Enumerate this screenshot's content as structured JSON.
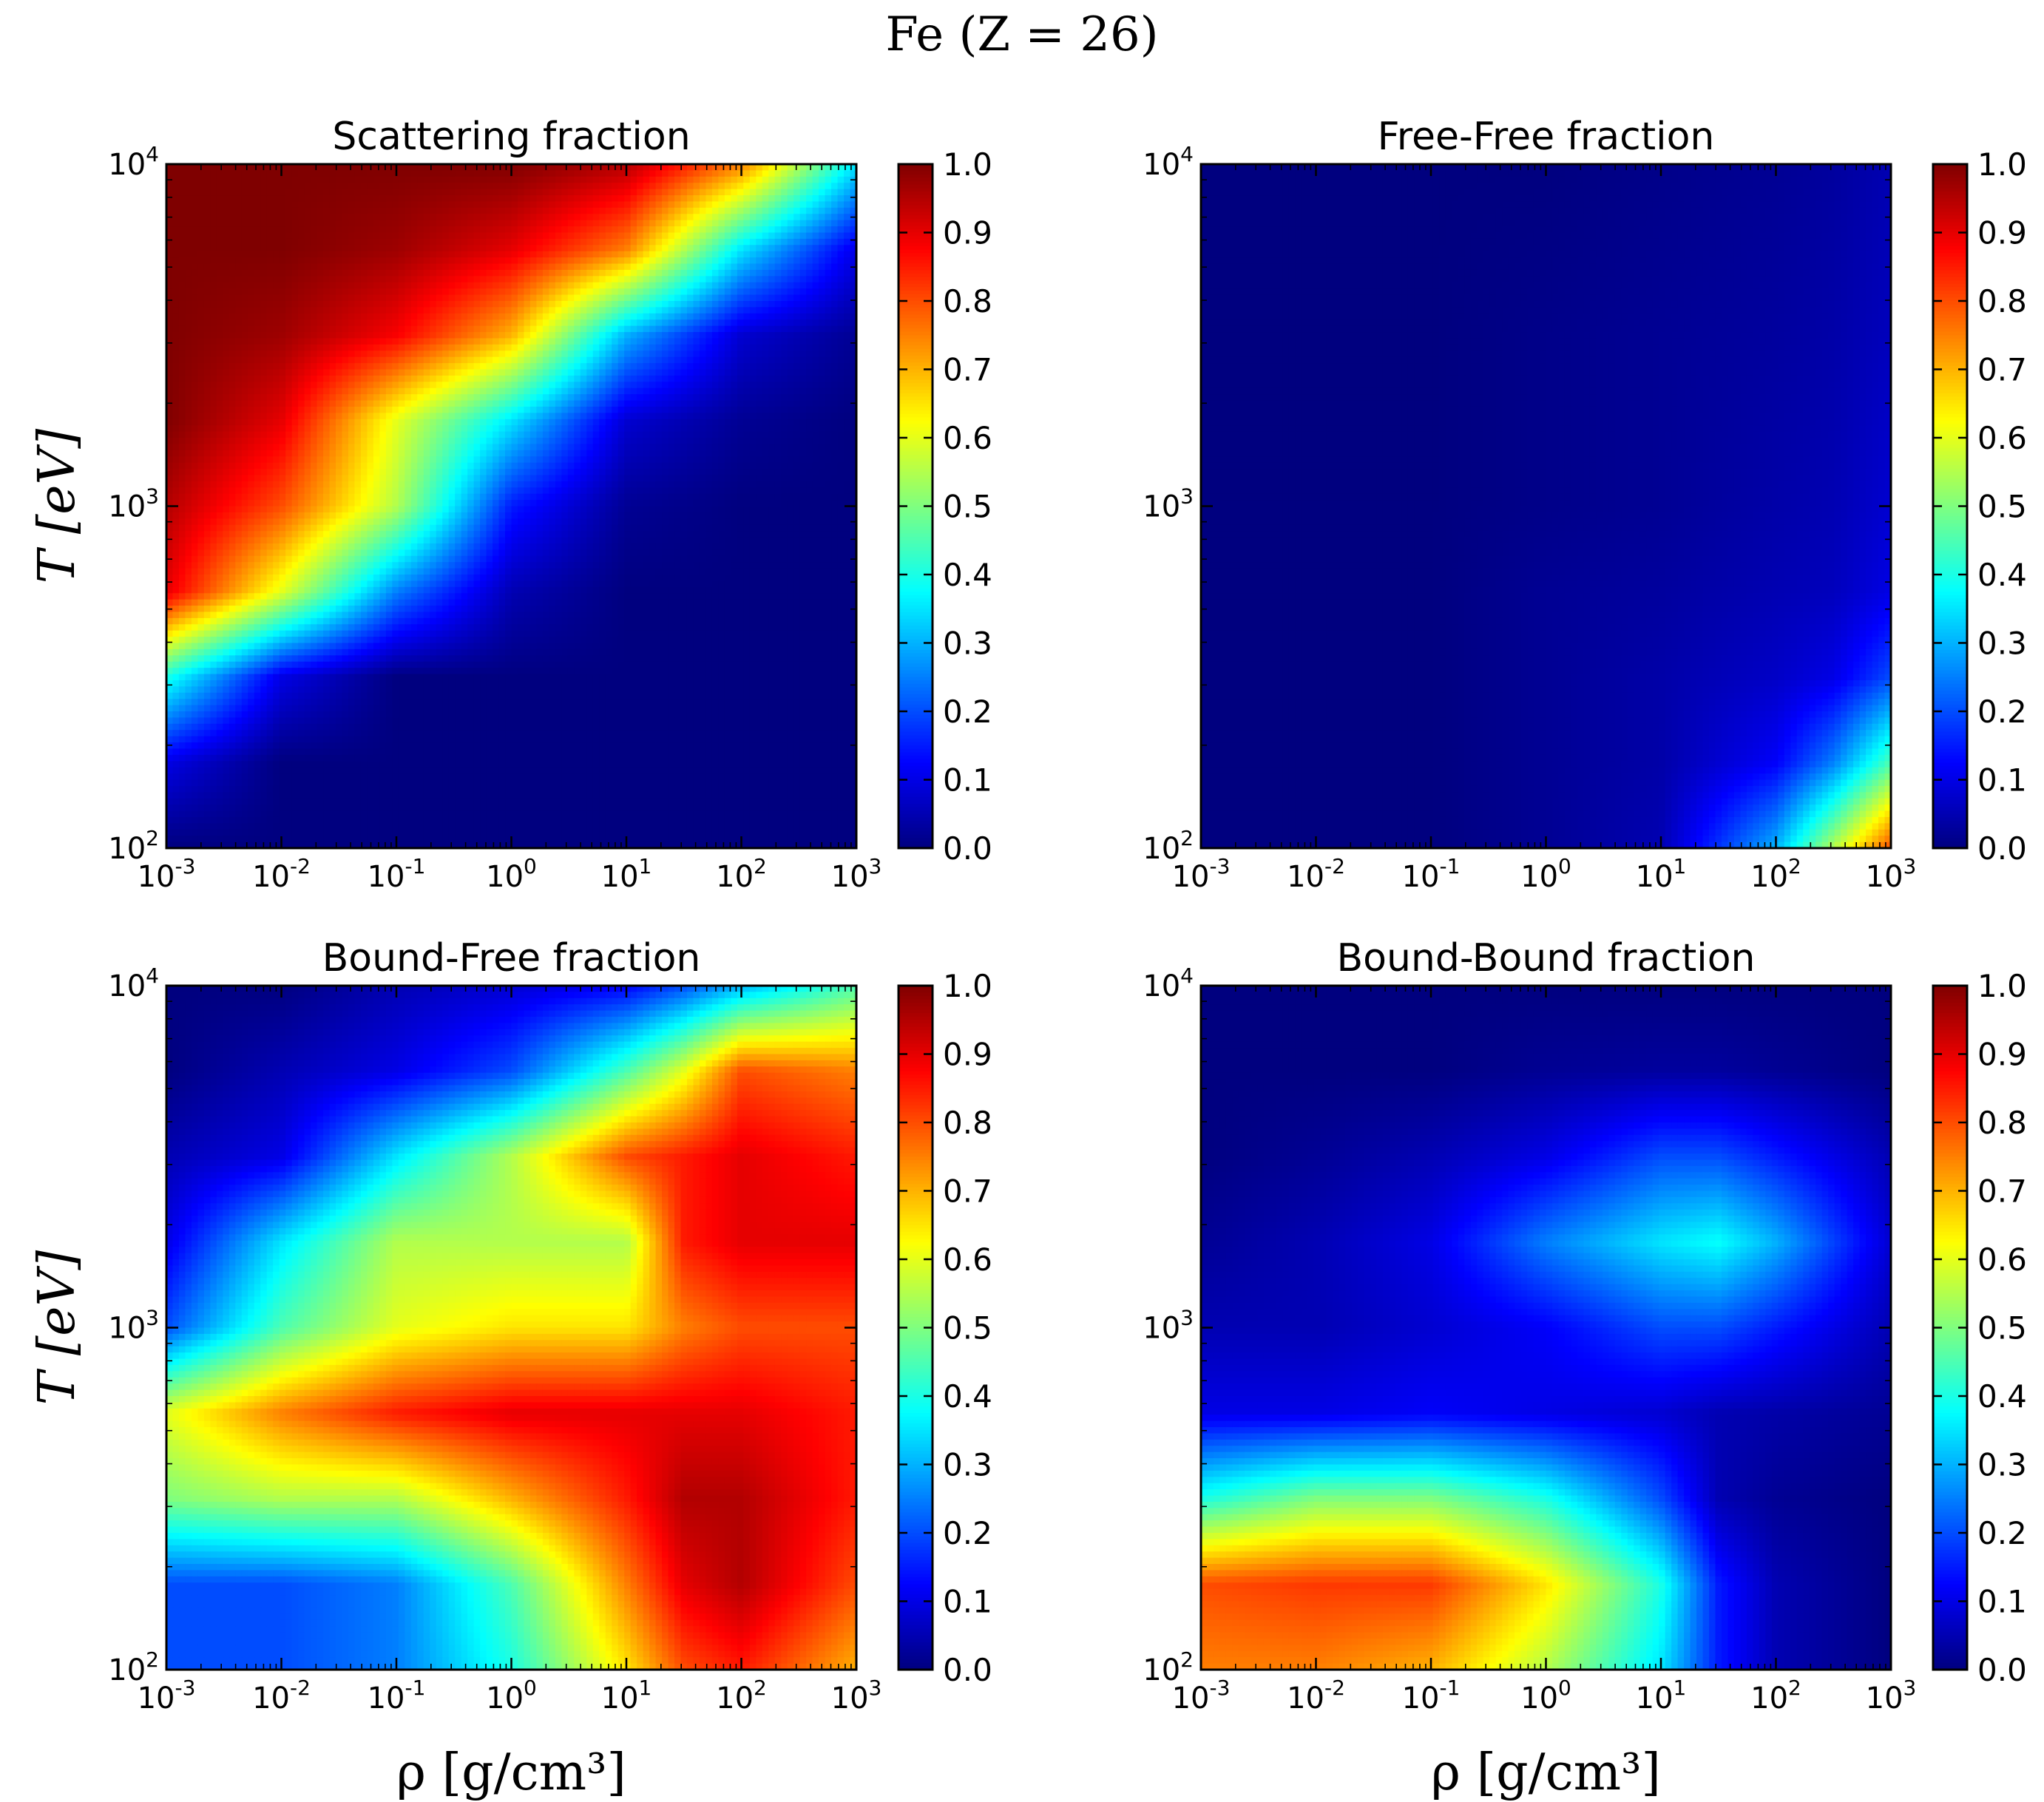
{
  "figure": {
    "suptitle": "Fe (Z = 26)",
    "xlabel": "ρ [g/cm³]",
    "ylabel": "T [eV]"
  },
  "colormap": {
    "name": "jet",
    "stops": [
      "#00007f",
      "#0000ff",
      "#007fff",
      "#00ffff",
      "#7fff7f",
      "#ffff00",
      "#ff7f00",
      "#ff0000",
      "#7f0000"
    ]
  },
  "colorbar": {
    "ticks": [
      "0.0",
      "0.1",
      "0.2",
      "0.3",
      "0.4",
      "0.5",
      "0.6",
      "0.7",
      "0.8",
      "0.9",
      "1.0"
    ]
  },
  "x_ticks": [
    {
      "base": "10",
      "exp": "-3"
    },
    {
      "base": "10",
      "exp": "-2"
    },
    {
      "base": "10",
      "exp": "-1"
    },
    {
      "base": "10",
      "exp": "0"
    },
    {
      "base": "10",
      "exp": "1"
    },
    {
      "base": "10",
      "exp": "2"
    },
    {
      "base": "10",
      "exp": "3"
    }
  ],
  "y_ticks": [
    {
      "base": "10",
      "exp": "2"
    },
    {
      "base": "10",
      "exp": "3"
    },
    {
      "base": "10",
      "exp": "4"
    }
  ],
  "chart_data": [
    {
      "type": "heatmap",
      "title": "Scattering fraction",
      "xlabel": "",
      "ylabel": "T [eV]",
      "x_scale": "log",
      "y_scale": "log",
      "xlim": [
        0.001,
        1000
      ],
      "ylim": [
        100,
        10000
      ],
      "clim": [
        0.0,
        1.0
      ],
      "log10_rho": [
        -3,
        -2,
        -1,
        0,
        1,
        2,
        3
      ],
      "log10_T": [
        2.0,
        2.25,
        2.5,
        2.75,
        3.0,
        3.25,
        3.5,
        3.75,
        4.0
      ],
      "values": [
        [
          0.0,
          0.0,
          0.0,
          0.0,
          0.0,
          0.0,
          0.0
        ],
        [
          0.1,
          0.0,
          0.0,
          0.0,
          0.0,
          0.0,
          0.0
        ],
        [
          0.4,
          0.1,
          0.0,
          0.0,
          0.0,
          0.0,
          0.0
        ],
        [
          0.9,
          0.6,
          0.25,
          0.05,
          0.0,
          0.0,
          0.0
        ],
        [
          0.95,
          0.8,
          0.55,
          0.15,
          0.02,
          0.0,
          0.0
        ],
        [
          1.0,
          0.9,
          0.6,
          0.35,
          0.08,
          0.02,
          0.0
        ],
        [
          1.0,
          0.97,
          0.88,
          0.7,
          0.3,
          0.08,
          0.02
        ],
        [
          1.0,
          1.0,
          0.97,
          0.9,
          0.75,
          0.35,
          0.1
        ],
        [
          1.0,
          1.0,
          1.0,
          1.0,
          0.95,
          0.75,
          0.35
        ]
      ]
    },
    {
      "type": "heatmap",
      "title": "Free-Free fraction",
      "xlabel": "",
      "ylabel": "",
      "x_scale": "log",
      "y_scale": "log",
      "xlim": [
        0.001,
        1000
      ],
      "ylim": [
        100,
        10000
      ],
      "clim": [
        0.0,
        1.0
      ],
      "log10_rho": [
        -3,
        -2,
        -1,
        0,
        1,
        2,
        2.5,
        3
      ],
      "log10_T": [
        2.0,
        2.25,
        2.5,
        2.75,
        3.0,
        3.5,
        4.0
      ],
      "values": [
        [
          0.0,
          0.0,
          0.0,
          0.02,
          0.05,
          0.3,
          0.55,
          0.8
        ],
        [
          0.0,
          0.0,
          0.0,
          0.02,
          0.04,
          0.12,
          0.25,
          0.45
        ],
        [
          0.0,
          0.0,
          0.0,
          0.02,
          0.04,
          0.07,
          0.1,
          0.2
        ],
        [
          0.0,
          0.0,
          0.0,
          0.02,
          0.03,
          0.05,
          0.06,
          0.1
        ],
        [
          0.0,
          0.0,
          0.0,
          0.01,
          0.02,
          0.04,
          0.05,
          0.08
        ],
        [
          0.0,
          0.0,
          0.0,
          0.01,
          0.02,
          0.03,
          0.04,
          0.06
        ],
        [
          0.0,
          0.0,
          0.0,
          0.0,
          0.01,
          0.02,
          0.03,
          0.05
        ]
      ]
    },
    {
      "type": "heatmap",
      "title": "Bound-Free fraction",
      "xlabel": "ρ [g/cm³]",
      "ylabel": "T [eV]",
      "x_scale": "log",
      "y_scale": "log",
      "xlim": [
        0.001,
        1000
      ],
      "ylim": [
        100,
        10000
      ],
      "clim": [
        0.0,
        1.0
      ],
      "log10_rho": [
        -3,
        -2,
        -1,
        0,
        1,
        1.5,
        2,
        3
      ],
      "log10_T": [
        2.0,
        2.25,
        2.5,
        2.75,
        3.0,
        3.25,
        3.5,
        3.75,
        4.0
      ],
      "values": [
        [
          0.2,
          0.2,
          0.25,
          0.4,
          0.65,
          0.8,
          0.85,
          0.7
        ],
        [
          0.2,
          0.2,
          0.25,
          0.45,
          0.75,
          0.9,
          0.95,
          0.8
        ],
        [
          0.5,
          0.55,
          0.55,
          0.7,
          0.85,
          0.95,
          0.95,
          0.85
        ],
        [
          0.6,
          0.75,
          0.85,
          0.9,
          0.9,
          0.9,
          0.9,
          0.85
        ],
        [
          0.2,
          0.45,
          0.6,
          0.65,
          0.65,
          0.75,
          0.8,
          0.8
        ],
        [
          0.1,
          0.35,
          0.55,
          0.55,
          0.55,
          0.85,
          0.9,
          0.9
        ],
        [
          0.05,
          0.1,
          0.35,
          0.55,
          0.8,
          0.85,
          0.9,
          0.85
        ],
        [
          0.0,
          0.05,
          0.1,
          0.2,
          0.45,
          0.6,
          0.8,
          0.75
        ],
        [
          0.0,
          0.0,
          0.05,
          0.08,
          0.12,
          0.2,
          0.3,
          0.45
        ]
      ]
    },
    {
      "type": "heatmap",
      "title": "Bound-Bound fraction",
      "xlabel": "ρ [g/cm³]",
      "ylabel": "",
      "x_scale": "log",
      "y_scale": "log",
      "xlim": [
        0.001,
        1000
      ],
      "ylim": [
        100,
        10000
      ],
      "clim": [
        0.0,
        1.0
      ],
      "log10_rho": [
        -3,
        -2,
        -1,
        0,
        1,
        1.5,
        2,
        3
      ],
      "log10_T": [
        2.0,
        2.25,
        2.5,
        2.75,
        3.0,
        3.25,
        3.5,
        3.75,
        4.0
      ],
      "values": [
        [
          0.75,
          0.75,
          0.7,
          0.55,
          0.35,
          0.15,
          0.05,
          0.0
        ],
        [
          0.8,
          0.82,
          0.82,
          0.65,
          0.4,
          0.15,
          0.05,
          0.0
        ],
        [
          0.4,
          0.5,
          0.5,
          0.4,
          0.2,
          0.05,
          0.02,
          0.0
        ],
        [
          0.1,
          0.1,
          0.12,
          0.1,
          0.08,
          0.05,
          0.04,
          0.02
        ],
        [
          0.05,
          0.05,
          0.08,
          0.12,
          0.2,
          0.2,
          0.15,
          0.05
        ],
        [
          0.02,
          0.05,
          0.1,
          0.25,
          0.35,
          0.38,
          0.3,
          0.08
        ],
        [
          0.0,
          0.02,
          0.05,
          0.1,
          0.2,
          0.2,
          0.15,
          0.05
        ],
        [
          0.0,
          0.0,
          0.0,
          0.02,
          0.03,
          0.03,
          0.02,
          0.0
        ],
        [
          0.0,
          0.0,
          0.0,
          0.0,
          0.0,
          0.0,
          0.0,
          0.0
        ]
      ]
    }
  ]
}
